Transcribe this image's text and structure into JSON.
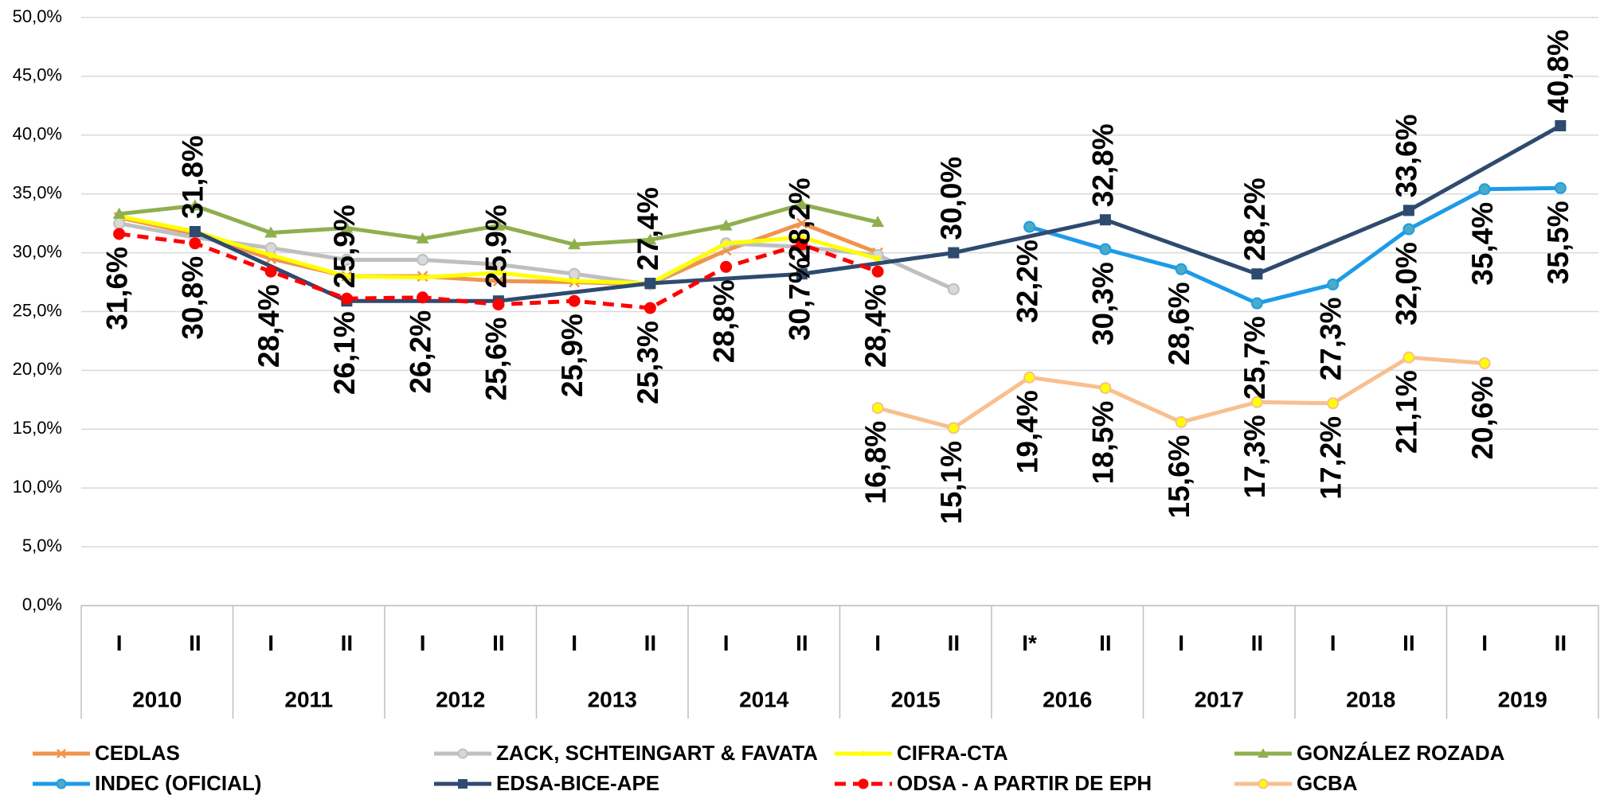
{
  "chart_data": {
    "type": "line",
    "categories": [
      "I",
      "II",
      "I",
      "II",
      "I",
      "II",
      "I",
      "II",
      "I",
      "II",
      "I",
      "II",
      "I*",
      "II",
      "I",
      "II",
      "I",
      "II",
      "I",
      "II"
    ],
    "groups": [
      "2010",
      "2011",
      "2012",
      "2013",
      "2014",
      "2015",
      "2016",
      "2017",
      "2018",
      "2019"
    ],
    "ylim": [
      0,
      50
    ],
    "yticks": [
      {
        "value": 0,
        "label": "0,0%"
      },
      {
        "value": 5,
        "label": "5,0%"
      },
      {
        "value": 10,
        "label": "10,0%"
      },
      {
        "value": 15,
        "label": "15,0%"
      },
      {
        "value": 20,
        "label": "20,0%"
      },
      {
        "value": 25,
        "label": "25,0%"
      },
      {
        "value": 30,
        "label": "30,0%"
      },
      {
        "value": 35,
        "label": "35,0%"
      },
      {
        "value": 40,
        "label": "40,0%"
      },
      {
        "value": 45,
        "label": "45,0%"
      },
      {
        "value": 50,
        "label": "50,0%"
      }
    ],
    "grid": true,
    "legend": "bottom",
    "series": [
      {
        "name": "CEDLAS",
        "color": "#f0944d",
        "marker": "x",
        "values": [
          33.0,
          31.6,
          29.5,
          28.0,
          28.0,
          27.6,
          27.5,
          27.3,
          30.2,
          32.5,
          30.0,
          null,
          null,
          null,
          null,
          null,
          null,
          null,
          null,
          null
        ]
      },
      {
        "name": "ZACK, SCHTEINGART & FAVATA",
        "color": "#bfbfbf",
        "marker": "circle",
        "marker_color": "#d9d9d9",
        "values": [
          32.5,
          31.3,
          30.4,
          29.4,
          29.4,
          29.0,
          28.2,
          27.3,
          30.8,
          30.5,
          29.8,
          26.9,
          null,
          null,
          null,
          null,
          null,
          null,
          null,
          null
        ]
      },
      {
        "name": "CIFRA-CTA",
        "color": "#ffff00",
        "marker": "dot",
        "values": [
          33.1,
          31.8,
          29.8,
          28.0,
          27.9,
          28.3,
          27.6,
          27.4,
          30.8,
          31.3,
          29.5,
          null,
          null,
          null,
          null,
          null,
          null,
          null,
          null,
          null
        ]
      },
      {
        "name": "GONZÁLEZ ROZADA",
        "color": "#8faf4f",
        "marker": "triangle",
        "values": [
          33.3,
          34.0,
          31.7,
          32.1,
          31.2,
          32.3,
          30.7,
          31.1,
          32.3,
          34.1,
          32.6,
          null,
          null,
          null,
          null,
          null,
          null,
          null,
          null,
          null
        ]
      },
      {
        "name": "INDEC (OFICIAL)",
        "color": "#1e9be8",
        "marker": "circle",
        "marker_color": "#4bacc6",
        "label_position": "below",
        "values": [
          null,
          null,
          null,
          null,
          null,
          null,
          null,
          null,
          null,
          null,
          null,
          null,
          32.2,
          30.3,
          28.6,
          25.7,
          27.3,
          32.0,
          35.4,
          35.5
        ],
        "value_labels": [
          null,
          null,
          null,
          null,
          null,
          null,
          null,
          null,
          null,
          null,
          null,
          null,
          "32,2%",
          "30,3%",
          "28,6%",
          "25,7%",
          "27,3%",
          "32,0%",
          "35,4%",
          "35,5%"
        ]
      },
      {
        "name": "EDSA-BICE-APE",
        "color": "#2e4a6e",
        "marker": "square",
        "connect_gaps": true,
        "label_position": "above",
        "values": [
          null,
          31.8,
          null,
          25.9,
          null,
          25.9,
          null,
          27.4,
          null,
          28.2,
          null,
          30.0,
          null,
          32.8,
          null,
          28.2,
          null,
          33.6,
          null,
          40.8
        ],
        "value_labels": [
          null,
          "31,8%",
          null,
          "25,9%",
          null,
          "25,9%",
          null,
          "27,4%",
          null,
          "28,2%",
          null,
          "30,0%",
          null,
          "32,8%",
          null,
          "28,2%",
          null,
          "33,6%",
          null,
          "40,8%"
        ]
      },
      {
        "name": "ODSA - A PARTIR DE EPH",
        "color": "#ff0000",
        "marker": "circle",
        "dashed": true,
        "label_position": "below",
        "values": [
          31.6,
          30.8,
          28.4,
          26.1,
          26.2,
          25.6,
          25.9,
          25.3,
          28.8,
          30.7,
          28.4,
          null,
          null,
          null,
          null,
          null,
          null,
          null,
          null,
          null
        ],
        "value_labels": [
          "31,6%",
          "30,8%",
          "28,4%",
          "26,1%",
          "26,2%",
          "25,6%",
          "25,9%",
          "25,3%",
          "28,8%",
          "30,7%",
          "28,4%",
          null,
          null,
          null,
          null,
          null,
          null,
          null,
          null,
          null
        ]
      },
      {
        "name": "GCBA",
        "color": "#f8bf8f",
        "marker": "circle",
        "marker_color": "#ffff00",
        "label_position": "below",
        "values": [
          null,
          null,
          null,
          null,
          null,
          null,
          null,
          null,
          null,
          null,
          16.8,
          15.1,
          19.4,
          18.5,
          15.6,
          17.3,
          17.2,
          21.1,
          20.6,
          null
        ],
        "value_labels": [
          null,
          null,
          null,
          null,
          null,
          null,
          null,
          null,
          null,
          null,
          "16,8%",
          "15,1%",
          "19,4%",
          "18,5%",
          "15,6%",
          "17,3%",
          "17,2%",
          "21,1%",
          "20,6%",
          null
        ]
      }
    ]
  }
}
